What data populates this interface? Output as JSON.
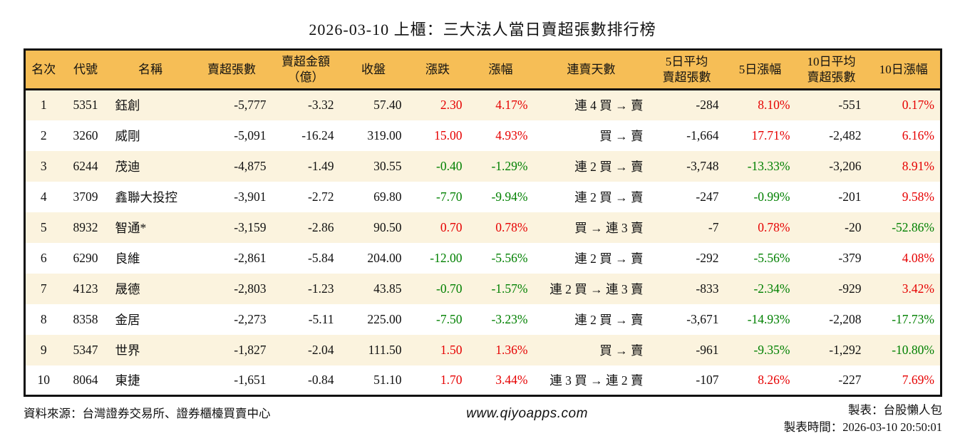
{
  "page": {
    "title": "2026-03-10 上櫃：三大法人當日賣超張數排行榜"
  },
  "colors": {
    "header_bg": "#F6BE56",
    "row_alt_bg": "#FBF3DE",
    "up_red": "#E60000",
    "down_green": "#008000",
    "border": "#111111"
  },
  "table": {
    "display_columns": [
      {
        "label": "名次",
        "align": "center"
      },
      {
        "label": "代號",
        "align": "center"
      },
      {
        "label": "名稱",
        "align": "left"
      },
      {
        "label": "賣超張數",
        "align": "right"
      },
      {
        "label": "賣超金額\n（億）",
        "align": "right"
      },
      {
        "label": "收盤",
        "align": "right"
      },
      {
        "label": "漲跌",
        "align": "right"
      },
      {
        "label": "漲幅",
        "align": "right"
      },
      {
        "label": "連賣天數",
        "align": "right"
      },
      {
        "label": "5日平均\n賣超張數",
        "align": "right"
      },
      {
        "label": "5日漲幅",
        "align": "right"
      },
      {
        "label": "10日平均\n賣超張數",
        "align": "right"
      },
      {
        "label": "10日漲幅",
        "align": "right"
      }
    ],
    "colored_columns": [
      6,
      7,
      10,
      12
    ]
  },
  "chart_data": {
    "type": "table",
    "title": "2026-03-10 上櫃：三大法人當日賣超張數排行榜",
    "columns": [
      "名次",
      "代號",
      "名稱",
      "賣超張數",
      "賣超金額（億）",
      "收盤",
      "漲跌",
      "漲幅",
      "連賣天數",
      "5日平均賣超張數",
      "5日漲幅",
      "10日平均賣超張數",
      "10日漲幅"
    ],
    "rows": [
      [
        "1",
        "5351",
        "鈺創",
        "-5,777",
        "-3.32",
        "57.40",
        "2.30",
        "4.17%",
        "連 4 買 → 賣",
        "-284",
        "8.10%",
        "-551",
        "0.17%"
      ],
      [
        "2",
        "3260",
        "威剛",
        "-5,091",
        "-16.24",
        "319.00",
        "15.00",
        "4.93%",
        "買 → 賣",
        "-1,664",
        "17.71%",
        "-2,482",
        "6.16%"
      ],
      [
        "3",
        "6244",
        "茂迪",
        "-4,875",
        "-1.49",
        "30.55",
        "-0.40",
        "-1.29%",
        "連 2 買 → 賣",
        "-3,748",
        "-13.33%",
        "-3,206",
        "8.91%"
      ],
      [
        "4",
        "3709",
        "鑫聯大投控",
        "-3,901",
        "-2.72",
        "69.80",
        "-7.70",
        "-9.94%",
        "連 2 買 → 賣",
        "-247",
        "-0.99%",
        "-201",
        "9.58%"
      ],
      [
        "5",
        "8932",
        "智通*",
        "-3,159",
        "-2.86",
        "90.50",
        "0.70",
        "0.78%",
        "買 → 連 3 賣",
        "-7",
        "0.78%",
        "-20",
        "-52.86%"
      ],
      [
        "6",
        "6290",
        "良維",
        "-2,861",
        "-5.84",
        "204.00",
        "-12.00",
        "-5.56%",
        "連 2 買 → 賣",
        "-292",
        "-5.56%",
        "-379",
        "4.08%"
      ],
      [
        "7",
        "4123",
        "晟德",
        "-2,803",
        "-1.23",
        "43.85",
        "-0.70",
        "-1.57%",
        "連 2 買 → 連 3 賣",
        "-833",
        "-2.34%",
        "-929",
        "3.42%"
      ],
      [
        "8",
        "8358",
        "金居",
        "-2,273",
        "-5.11",
        "225.00",
        "-7.50",
        "-3.23%",
        "連 2 買 → 賣",
        "-3,671",
        "-14.93%",
        "-2,208",
        "-17.73%"
      ],
      [
        "9",
        "5347",
        "世界",
        "-1,827",
        "-2.04",
        "111.50",
        "1.50",
        "1.36%",
        "買 → 賣",
        "-961",
        "-9.35%",
        "-1,292",
        "-10.80%"
      ],
      [
        "10",
        "8064",
        "東捷",
        "-1,651",
        "-0.84",
        "51.10",
        "1.70",
        "3.44%",
        "連 3 買 → 連 2 賣",
        "-107",
        "8.26%",
        "-227",
        "7.69%"
      ]
    ]
  },
  "footer": {
    "source": "資料來源：台灣證券交易所、證券櫃檯買賣中心",
    "website": "www.qiyoapps.com",
    "maker": "製表：台股懶人包",
    "timestamp": "製表時間：2026-03-10 20:50:01"
  }
}
